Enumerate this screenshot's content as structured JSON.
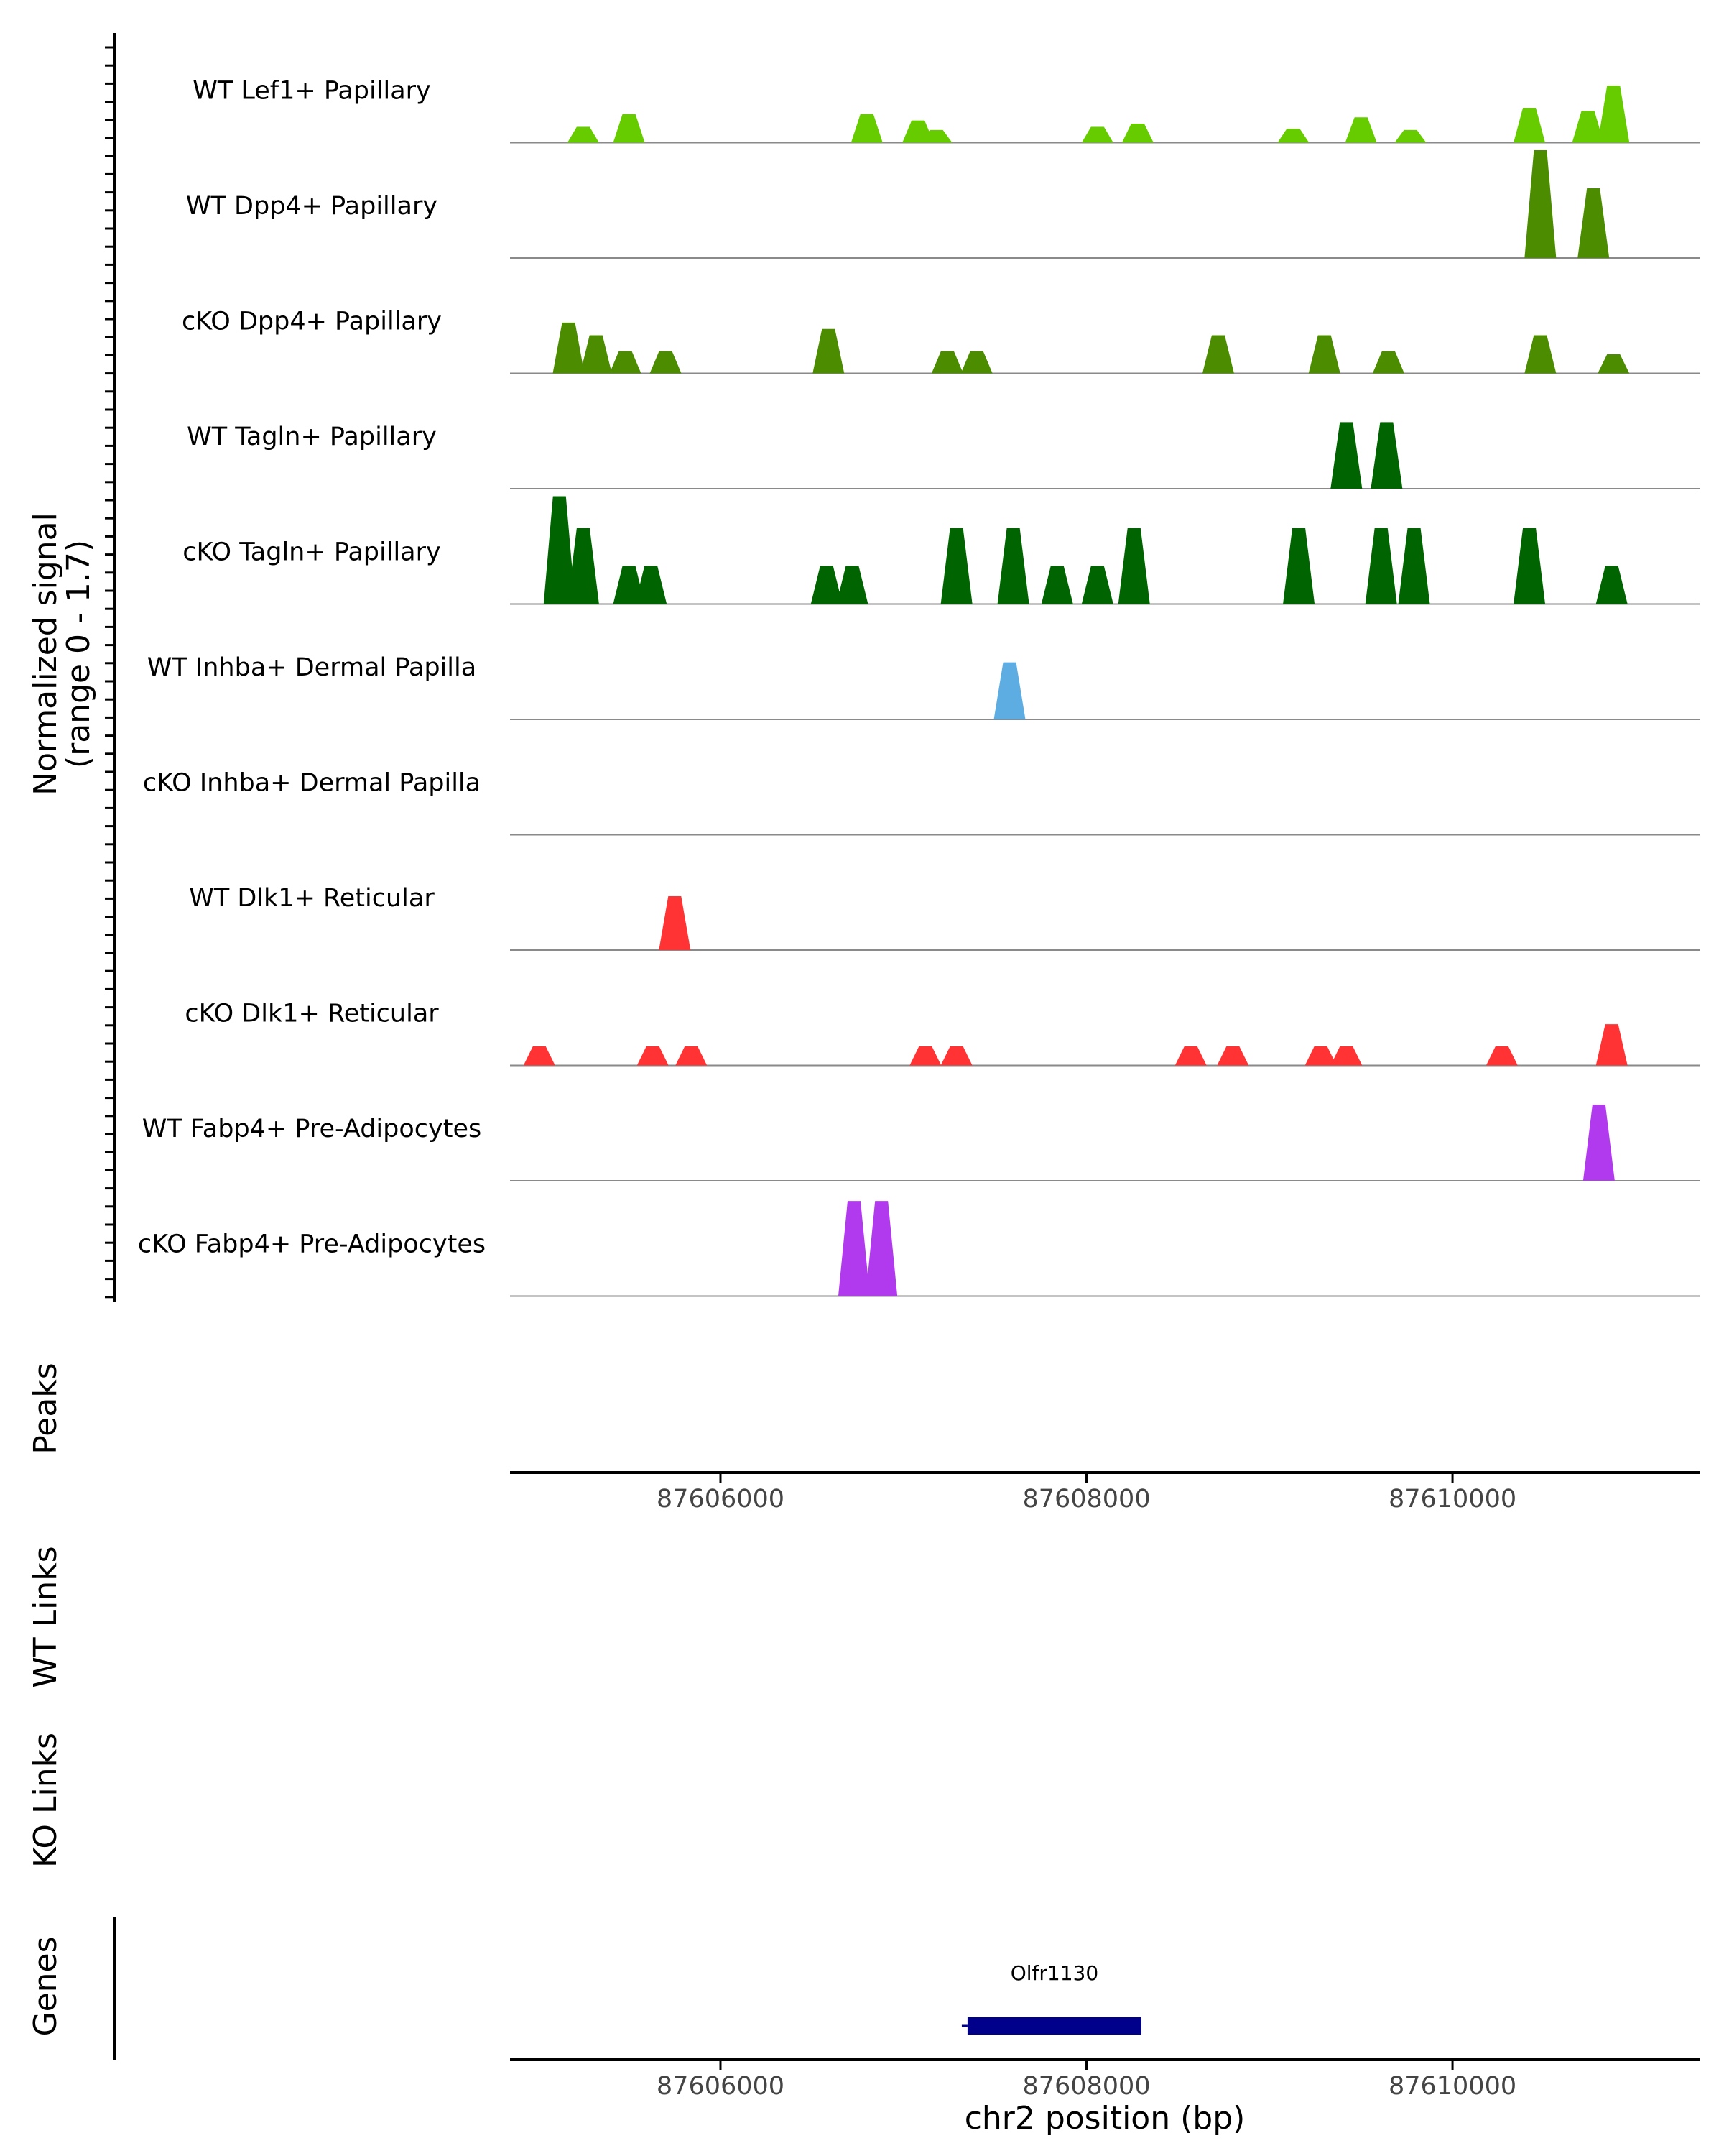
{
  "chart_data": {
    "type": "area",
    "title": "",
    "xlabel": "chr2 position (bp)",
    "ylabel": "Normalized signal",
    "ylabel_sub": "(range 0 - 1.7)",
    "ylim": [
      0,
      1.7
    ],
    "xlim": [
      87604850,
      87611350
    ],
    "x_ticks": [
      87606000,
      87608000,
      87610000
    ],
    "x_tick_labels": [
      "87606000",
      "87608000",
      "87610000"
    ],
    "tracks": [
      {
        "label": "WT Lef1+ Papillary",
        "color": "#66CC00",
        "peaks": [
          [
            87605250,
            0.25
          ],
          [
            87605500,
            0.45
          ],
          [
            87606800,
            0.45
          ],
          [
            87607080,
            0.35
          ],
          [
            87607180,
            0.2
          ],
          [
            87608060,
            0.25
          ],
          [
            87608280,
            0.3
          ],
          [
            87609130,
            0.22
          ],
          [
            87609500,
            0.4
          ],
          [
            87609770,
            0.2
          ],
          [
            87610420,
            0.55
          ],
          [
            87610740,
            0.5
          ],
          [
            87610880,
            0.9
          ]
        ]
      },
      {
        "label": "WT Dpp4+ Papillary",
        "color": "#4C8C00",
        "peaks": [
          [
            87610480,
            1.7
          ],
          [
            87610770,
            1.1
          ]
        ]
      },
      {
        "label": "cKO Dpp4+ Papillary",
        "color": "#4C8C00",
        "peaks": [
          [
            87605170,
            0.8
          ],
          [
            87605320,
            0.6
          ],
          [
            87605480,
            0.35
          ],
          [
            87605700,
            0.35
          ],
          [
            87606590,
            0.7
          ],
          [
            87607240,
            0.35
          ],
          [
            87607400,
            0.35
          ],
          [
            87608720,
            0.6
          ],
          [
            87609300,
            0.6
          ],
          [
            87609650,
            0.35
          ],
          [
            87610480,
            0.6
          ],
          [
            87610880,
            0.3
          ]
        ]
      },
      {
        "label": "WT Tagln+ Papillary",
        "color": "#006400",
        "peaks": [
          [
            87609420,
            1.05
          ],
          [
            87609640,
            1.05
          ]
        ]
      },
      {
        "label": "cKO Tagln+ Papillary",
        "color": "#006400",
        "peaks": [
          [
            87605120,
            1.7
          ],
          [
            87605250,
            1.2
          ],
          [
            87605500,
            0.6
          ],
          [
            87605620,
            0.6
          ],
          [
            87606580,
            0.6
          ],
          [
            87606720,
            0.6
          ],
          [
            87607290,
            1.2
          ],
          [
            87607600,
            1.2
          ],
          [
            87607840,
            0.6
          ],
          [
            87608060,
            0.6
          ],
          [
            87608260,
            1.2
          ],
          [
            87609160,
            1.2
          ],
          [
            87609610,
            1.2
          ],
          [
            87609790,
            1.2
          ],
          [
            87610420,
            1.2
          ],
          [
            87610870,
            0.6
          ]
        ]
      },
      {
        "label": "WT Inhba+ Dermal Papilla",
        "color": "#5DADE2",
        "peaks": [
          [
            87607580,
            0.9
          ]
        ]
      },
      {
        "label": "cKO Inhba+ Dermal Papilla",
        "color": "#5DADE2",
        "peaks": []
      },
      {
        "label": "WT Dlk1+ Reticular",
        "color": "#FF3333",
        "peaks": [
          [
            87605750,
            0.85
          ]
        ]
      },
      {
        "label": "cKO Dlk1+ Reticular",
        "color": "#FF3333",
        "peaks": [
          [
            87605010,
            0.3
          ],
          [
            87605630,
            0.3
          ],
          [
            87605840,
            0.3
          ],
          [
            87607120,
            0.3
          ],
          [
            87607290,
            0.3
          ],
          [
            87608570,
            0.3
          ],
          [
            87608800,
            0.3
          ],
          [
            87609280,
            0.3
          ],
          [
            87609420,
            0.3
          ],
          [
            87610270,
            0.3
          ],
          [
            87610870,
            0.65
          ]
        ]
      },
      {
        "label": "WT Fabp4+ Pre-Adipocytes",
        "color": "#B23AEE",
        "peaks": [
          [
            87610800,
            1.2
          ]
        ]
      },
      {
        "label": "cKO Fabp4+ Pre-Adipocytes",
        "color": "#B23AEE",
        "peaks": [
          [
            87606730,
            1.5
          ],
          [
            87606880,
            1.5
          ]
        ]
      }
    ],
    "panels": [
      "Peaks",
      "WT Links",
      "KO Links",
      "Genes"
    ],
    "genes": [
      {
        "name": "Olfr1130",
        "start": 87607350,
        "end": 87608300,
        "strand": "-",
        "color": "#00008B"
      }
    ]
  }
}
